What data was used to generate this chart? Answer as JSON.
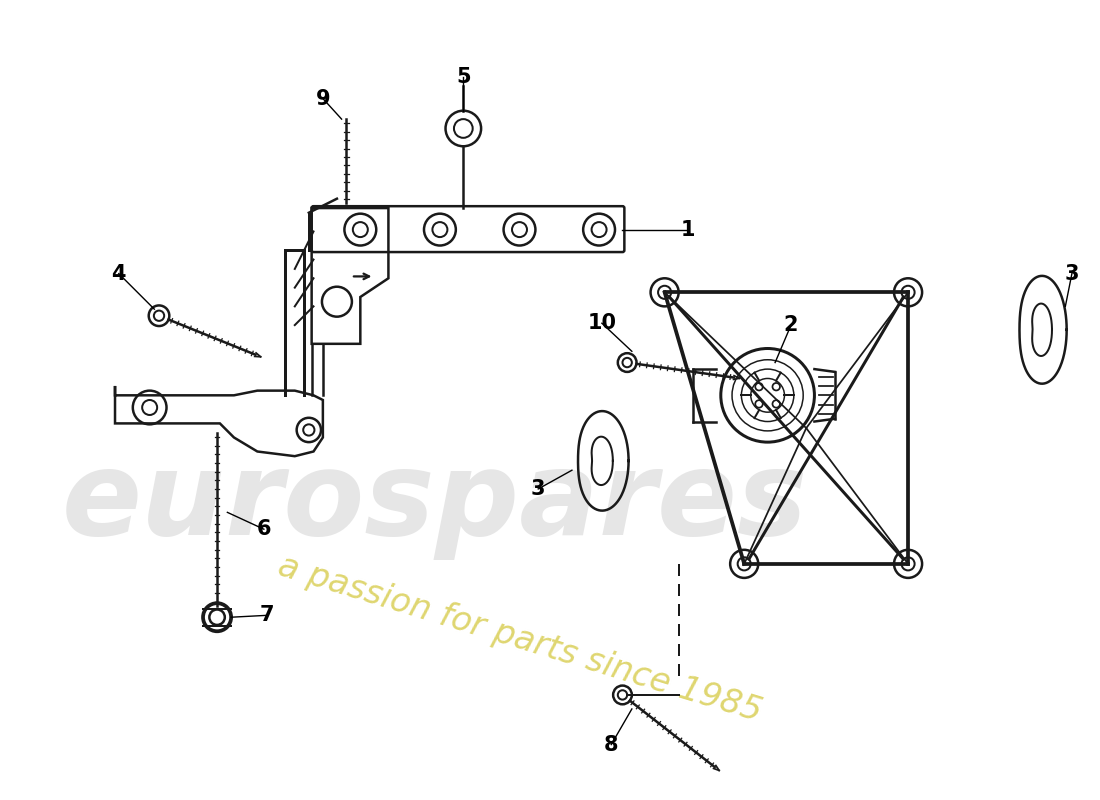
{
  "background_color": "#ffffff",
  "line_color": "#1a1a1a",
  "fig_width": 11.0,
  "fig_height": 8.0,
  "watermark1": "eurospares",
  "watermark2": "a passion for parts since 1985",
  "wm_color1": "#cccccc",
  "wm_color2": "#d4c840"
}
